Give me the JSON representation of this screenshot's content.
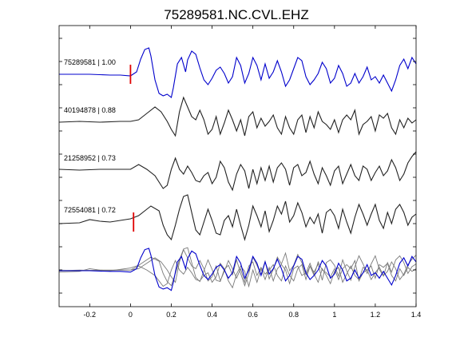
{
  "chart_data": {
    "type": "line",
    "title": "75289581.NC.CVL.EHZ",
    "xlabel": "",
    "ylabel": "",
    "xlim": [
      -0.35,
      1.4
    ],
    "grid": false,
    "x_ticks": [
      {
        "value": -0.2,
        "label": "-0.2"
      },
      {
        "value": 0,
        "label": "0"
      },
      {
        "value": 0.2,
        "label": "0.2"
      },
      {
        "value": 0.4,
        "label": "0.4"
      },
      {
        "value": 0.6,
        "label": "0.6"
      },
      {
        "value": 0.8,
        "label": "0.8"
      },
      {
        "value": 1,
        "label": "1"
      },
      {
        "value": 1.2,
        "label": "1.2"
      },
      {
        "value": 1.4,
        "label": "1.4"
      }
    ],
    "traces": [
      {
        "label": "75289581 | 1.00",
        "color": "#0000cc",
        "pick_time": 0.0,
        "baseline": 93,
        "points": [
          [
            -0.35,
            93
          ],
          [
            -0.2,
            93
          ],
          [
            -0.1,
            94
          ],
          [
            -0.05,
            94
          ],
          [
            0.0,
            95
          ],
          [
            0.03,
            90
          ],
          [
            0.05,
            74
          ],
          [
            0.07,
            62
          ],
          [
            0.09,
            60
          ],
          [
            0.1,
            70
          ],
          [
            0.12,
            100
          ],
          [
            0.14,
            117
          ],
          [
            0.16,
            120
          ],
          [
            0.18,
            118
          ],
          [
            0.2,
            122
          ],
          [
            0.21,
            110
          ],
          [
            0.23,
            80
          ],
          [
            0.25,
            72
          ],
          [
            0.27,
            90
          ],
          [
            0.28,
            75
          ],
          [
            0.3,
            64
          ],
          [
            0.32,
            68
          ],
          [
            0.34,
            85
          ],
          [
            0.36,
            100
          ],
          [
            0.38,
            106
          ],
          [
            0.4,
            98
          ],
          [
            0.42,
            88
          ],
          [
            0.44,
            84
          ],
          [
            0.46,
            92
          ],
          [
            0.48,
            104
          ],
          [
            0.5,
            96
          ],
          [
            0.52,
            72
          ],
          [
            0.54,
            82
          ],
          [
            0.56,
            104
          ],
          [
            0.58,
            92
          ],
          [
            0.6,
            72
          ],
          [
            0.62,
            82
          ],
          [
            0.64,
            100
          ],
          [
            0.66,
            80
          ],
          [
            0.68,
            98
          ],
          [
            0.7,
            90
          ],
          [
            0.72,
            76
          ],
          [
            0.74,
            90
          ],
          [
            0.76,
            108
          ],
          [
            0.78,
            100
          ],
          [
            0.8,
            86
          ],
          [
            0.82,
            72
          ],
          [
            0.84,
            76
          ],
          [
            0.86,
            96
          ],
          [
            0.88,
            106
          ],
          [
            0.9,
            100
          ],
          [
            0.92,
            92
          ],
          [
            0.94,
            78
          ],
          [
            0.96,
            86
          ],
          [
            0.98,
            104
          ],
          [
            1.0,
            98
          ],
          [
            1.02,
            82
          ],
          [
            1.04,
            92
          ],
          [
            1.06,
            108
          ],
          [
            1.08,
            104
          ],
          [
            1.1,
            92
          ],
          [
            1.12,
            104
          ],
          [
            1.14,
            96
          ],
          [
            1.16,
            84
          ],
          [
            1.18,
            100
          ],
          [
            1.2,
            96
          ],
          [
            1.22,
            104
          ],
          [
            1.24,
            94
          ],
          [
            1.26,
            104
          ],
          [
            1.28,
            114
          ],
          [
            1.3,
            100
          ],
          [
            1.32,
            82
          ],
          [
            1.34,
            74
          ],
          [
            1.36,
            86
          ],
          [
            1.38,
            72
          ],
          [
            1.4,
            80
          ]
        ]
      },
      {
        "label": "40194878 | 0.88",
        "color": "#222222",
        "pick_time": null,
        "baseline": 153,
        "points": [
          [
            -0.35,
            153
          ],
          [
            -0.25,
            152
          ],
          [
            -0.15,
            153
          ],
          [
            -0.05,
            152
          ],
          [
            0.0,
            152
          ],
          [
            0.04,
            150
          ],
          [
            0.08,
            142
          ],
          [
            0.12,
            134
          ],
          [
            0.15,
            140
          ],
          [
            0.18,
            152
          ],
          [
            0.2,
            162
          ],
          [
            0.22,
            170
          ],
          [
            0.24,
            140
          ],
          [
            0.26,
            122
          ],
          [
            0.28,
            134
          ],
          [
            0.3,
            146
          ],
          [
            0.32,
            150
          ],
          [
            0.34,
            138
          ],
          [
            0.36,
            150
          ],
          [
            0.38,
            168
          ],
          [
            0.4,
            162
          ],
          [
            0.42,
            146
          ],
          [
            0.44,
            168
          ],
          [
            0.46,
            154
          ],
          [
            0.48,
            138
          ],
          [
            0.5,
            150
          ],
          [
            0.52,
            164
          ],
          [
            0.54,
            150
          ],
          [
            0.56,
            170
          ],
          [
            0.58,
            146
          ],
          [
            0.6,
            140
          ],
          [
            0.62,
            160
          ],
          [
            0.64,
            148
          ],
          [
            0.66,
            158
          ],
          [
            0.68,
            152
          ],
          [
            0.7,
            144
          ],
          [
            0.72,
            160
          ],
          [
            0.74,
            168
          ],
          [
            0.76,
            146
          ],
          [
            0.78,
            160
          ],
          [
            0.8,
            168
          ],
          [
            0.82,
            150
          ],
          [
            0.84,
            144
          ],
          [
            0.86,
            166
          ],
          [
            0.88,
            146
          ],
          [
            0.9,
            160
          ],
          [
            0.92,
            140
          ],
          [
            0.94,
            152
          ],
          [
            0.96,
            156
          ],
          [
            0.98,
            162
          ],
          [
            1.0,
            150
          ],
          [
            1.02,
            166
          ],
          [
            1.04,
            150
          ],
          [
            1.06,
            144
          ],
          [
            1.08,
            150
          ],
          [
            1.1,
            138
          ],
          [
            1.12,
            168
          ],
          [
            1.14,
            156
          ],
          [
            1.16,
            152
          ],
          [
            1.18,
            146
          ],
          [
            1.2,
            164
          ],
          [
            1.22,
            144
          ],
          [
            1.24,
            148
          ],
          [
            1.26,
            142
          ],
          [
            1.28,
            160
          ],
          [
            1.3,
            168
          ],
          [
            1.32,
            150
          ],
          [
            1.34,
            160
          ],
          [
            1.36,
            148
          ],
          [
            1.38,
            154
          ],
          [
            1.4,
            150
          ]
        ]
      },
      {
        "label": "21258952 | 0.73",
        "color": "#222222",
        "pick_time": null,
        "baseline": 213,
        "points": [
          [
            -0.35,
            212
          ],
          [
            -0.25,
            213
          ],
          [
            -0.15,
            212
          ],
          [
            -0.05,
            212
          ],
          [
            0.0,
            212
          ],
          [
            0.04,
            206
          ],
          [
            0.08,
            212
          ],
          [
            0.12,
            220
          ],
          [
            0.16,
            236
          ],
          [
            0.18,
            232
          ],
          [
            0.2,
            212
          ],
          [
            0.22,
            198
          ],
          [
            0.24,
            212
          ],
          [
            0.26,
            218
          ],
          [
            0.28,
            208
          ],
          [
            0.3,
            216
          ],
          [
            0.32,
            226
          ],
          [
            0.34,
            228
          ],
          [
            0.36,
            220
          ],
          [
            0.38,
            216
          ],
          [
            0.4,
            230
          ],
          [
            0.42,
            222
          ],
          [
            0.44,
            202
          ],
          [
            0.46,
            210
          ],
          [
            0.48,
            228
          ],
          [
            0.5,
            238
          ],
          [
            0.52,
            218
          ],
          [
            0.54,
            206
          ],
          [
            0.56,
            214
          ],
          [
            0.58,
            236
          ],
          [
            0.6,
            212
          ],
          [
            0.62,
            230
          ],
          [
            0.64,
            210
          ],
          [
            0.66,
            226
          ],
          [
            0.68,
            208
          ],
          [
            0.7,
            228
          ],
          [
            0.72,
            210
          ],
          [
            0.74,
            204
          ],
          [
            0.76,
            212
          ],
          [
            0.78,
            232
          ],
          [
            0.8,
            210
          ],
          [
            0.82,
            206
          ],
          [
            0.84,
            220
          ],
          [
            0.86,
            216
          ],
          [
            0.88,
            202
          ],
          [
            0.9,
            218
          ],
          [
            0.92,
            230
          ],
          [
            0.94,
            210
          ],
          [
            0.96,
            220
          ],
          [
            0.98,
            232
          ],
          [
            1.0,
            214
          ],
          [
            1.02,
            208
          ],
          [
            1.04,
            230
          ],
          [
            1.06,
            218
          ],
          [
            1.08,
            206
          ],
          [
            1.1,
            220
          ],
          [
            1.12,
            226
          ],
          [
            1.14,
            208
          ],
          [
            1.16,
            212
          ],
          [
            1.18,
            226
          ],
          [
            1.2,
            216
          ],
          [
            1.22,
            208
          ],
          [
            1.24,
            220
          ],
          [
            1.26,
            214
          ],
          [
            1.28,
            200
          ],
          [
            1.3,
            210
          ],
          [
            1.32,
            226
          ],
          [
            1.34,
            218
          ],
          [
            1.36,
            204
          ],
          [
            1.38,
            196
          ],
          [
            1.4,
            190
          ]
        ]
      },
      {
        "label": "72554081 | 0.72",
        "color": "#222222",
        "pick_time": 0.015,
        "baseline": 278,
        "points": [
          [
            -0.35,
            280
          ],
          [
            -0.25,
            279
          ],
          [
            -0.2,
            275
          ],
          [
            -0.15,
            277
          ],
          [
            -0.1,
            278
          ],
          [
            -0.05,
            276
          ],
          [
            0.0,
            274
          ],
          [
            0.04,
            270
          ],
          [
            0.08,
            262
          ],
          [
            0.1,
            258
          ],
          [
            0.14,
            264
          ],
          [
            0.16,
            282
          ],
          [
            0.18,
            294
          ],
          [
            0.2,
            300
          ],
          [
            0.22,
            282
          ],
          [
            0.24,
            262
          ],
          [
            0.26,
            246
          ],
          [
            0.28,
            244
          ],
          [
            0.3,
            266
          ],
          [
            0.32,
            288
          ],
          [
            0.34,
            294
          ],
          [
            0.36,
            278
          ],
          [
            0.38,
            262
          ],
          [
            0.4,
            276
          ],
          [
            0.42,
            292
          ],
          [
            0.44,
            294
          ],
          [
            0.46,
            276
          ],
          [
            0.48,
            270
          ],
          [
            0.5,
            284
          ],
          [
            0.52,
            262
          ],
          [
            0.54,
            282
          ],
          [
            0.56,
            300
          ],
          [
            0.58,
            282
          ],
          [
            0.6,
            258
          ],
          [
            0.62,
            270
          ],
          [
            0.64,
            284
          ],
          [
            0.66,
            264
          ],
          [
            0.68,
            290
          ],
          [
            0.7,
            276
          ],
          [
            0.72,
            258
          ],
          [
            0.74,
            268
          ],
          [
            0.76,
            252
          ],
          [
            0.78,
            278
          ],
          [
            0.8,
            270
          ],
          [
            0.82,
            254
          ],
          [
            0.84,
            266
          ],
          [
            0.86,
            284
          ],
          [
            0.88,
            272
          ],
          [
            0.9,
            280
          ],
          [
            0.92,
            268
          ],
          [
            0.94,
            292
          ],
          [
            0.96,
            266
          ],
          [
            0.98,
            262
          ],
          [
            1.0,
            270
          ],
          [
            1.02,
            286
          ],
          [
            1.04,
            262
          ],
          [
            1.06,
            278
          ],
          [
            1.08,
            292
          ],
          [
            1.1,
            272
          ],
          [
            1.12,
            256
          ],
          [
            1.14,
            268
          ],
          [
            1.16,
            282
          ],
          [
            1.18,
            268
          ],
          [
            1.2,
            256
          ],
          [
            1.22,
            276
          ],
          [
            1.24,
            286
          ],
          [
            1.26,
            266
          ],
          [
            1.28,
            280
          ],
          [
            1.3,
            262
          ],
          [
            1.32,
            256
          ],
          [
            1.34,
            266
          ],
          [
            1.36,
            282
          ],
          [
            1.38,
            272
          ],
          [
            1.4,
            268
          ]
        ]
      }
    ],
    "overlay": {
      "stack_baseline": 339,
      "source_baselines": [
        93,
        153,
        213,
        278
      ],
      "scale": 0.85
    }
  }
}
